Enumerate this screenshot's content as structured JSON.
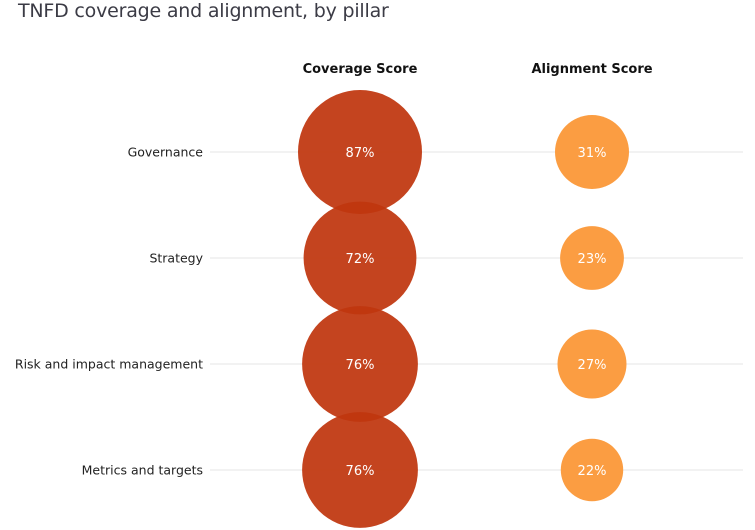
{
  "chart_data": {
    "type": "bubble",
    "title": "TNFD coverage and alignment, by pillar",
    "columns": [
      {
        "key": "coverage",
        "label": "Coverage Score",
        "color": "#c0360e"
      },
      {
        "key": "alignment",
        "label": "Alignment Score",
        "color": "#fb9a3c"
      }
    ],
    "categories": [
      "Governance",
      "Strategy",
      "Risk and impact management",
      "Metrics and targets"
    ],
    "series": [
      {
        "name": "Coverage Score",
        "values": [
          87,
          72,
          76,
          76
        ],
        "labels": [
          "87%",
          "72%",
          "76%",
          "76%"
        ]
      },
      {
        "name": "Alignment Score",
        "values": [
          31,
          23,
          27,
          22
        ],
        "labels": [
          "31%",
          "23%",
          "27%",
          "22%"
        ]
      }
    ],
    "unit": "%",
    "grid": true,
    "legend": "none"
  }
}
